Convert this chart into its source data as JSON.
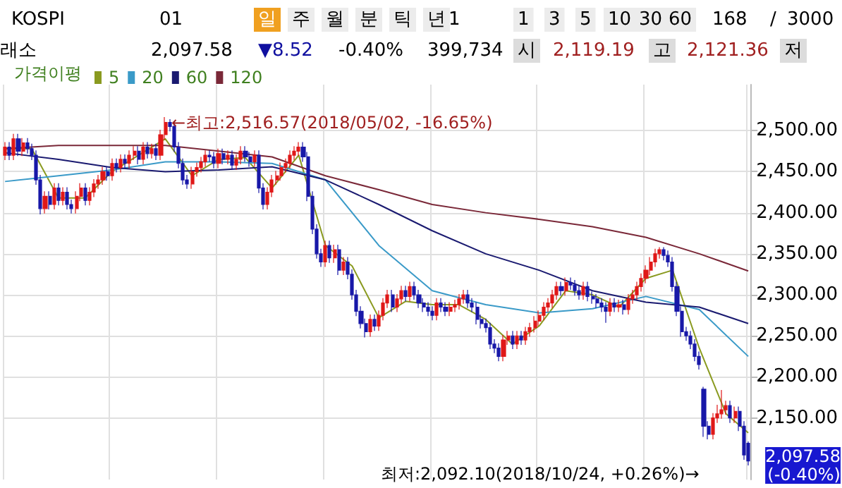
{
  "chart_data": {
    "type": "candlestick",
    "categories": [
      null,
      null,
      null,
      null,
      null,
      null,
      null,
      null,
      null,
      null,
      null,
      null,
      null,
      null,
      null,
      null,
      null,
      null,
      null,
      null,
      null,
      null,
      null,
      null,
      null,
      null,
      null,
      null,
      null,
      null,
      null,
      null,
      null,
      null,
      null,
      null,
      null,
      null,
      null,
      null,
      null,
      null,
      null,
      null,
      null,
      null,
      null,
      null,
      null,
      null,
      null,
      null,
      null,
      null,
      null,
      null,
      null,
      null,
      null,
      null,
      null,
      null,
      null,
      null,
      null,
      null,
      null,
      null,
      null,
      null,
      null,
      null,
      null,
      null,
      null,
      null,
      null,
      null,
      null,
      null,
      null,
      null,
      null,
      null,
      null,
      null,
      null,
      null,
      null,
      null,
      null,
      null,
      null,
      null,
      null,
      null,
      null,
      null,
      null,
      null,
      null,
      null,
      null,
      null,
      null,
      null,
      null,
      null,
      null,
      null,
      null,
      null,
      null,
      null,
      null,
      null,
      null,
      null,
      null,
      null,
      null,
      null,
      null,
      null,
      null,
      null,
      null,
      null,
      null,
      null,
      null,
      null,
      null,
      null,
      null,
      null,
      null,
      null,
      null,
      null,
      null,
      null,
      null,
      null,
      null,
      null,
      null,
      null,
      null,
      null,
      null,
      null,
      null,
      null,
      null,
      null,
      null,
      null,
      null,
      null,
      null,
      null,
      null,
      null,
      null,
      null,
      null,
      null
    ],
    "ohlc": [
      [
        2470,
        2486,
        2464,
        2480
      ],
      [
        2480,
        2486,
        2464,
        2470
      ],
      [
        2470,
        2496,
        2464,
        2490
      ],
      [
        2490,
        2496,
        2469,
        2475
      ],
      [
        2475,
        2491,
        2469,
        2485
      ],
      [
        2485,
        2491,
        2472,
        2478
      ],
      [
        2478,
        2484,
        2464,
        2470
      ],
      [
        2470,
        2476,
        2434,
        2440
      ],
      [
        2440,
        2446,
        2398,
        2405
      ],
      [
        2405,
        2426,
        2399,
        2420
      ],
      [
        2420,
        2426,
        2404,
        2410
      ],
      [
        2410,
        2436,
        2404,
        2430
      ],
      [
        2430,
        2436,
        2409,
        2415
      ],
      [
        2415,
        2431,
        2409,
        2425
      ],
      [
        2425,
        2431,
        2404,
        2410
      ],
      [
        2410,
        2416,
        2399,
        2405
      ],
      [
        2405,
        2426,
        2399,
        2420
      ],
      [
        2420,
        2436,
        2414,
        2430
      ],
      [
        2430,
        2436,
        2409,
        2415
      ],
      [
        2415,
        2431,
        2409,
        2425
      ],
      [
        2425,
        2441,
        2419,
        2435
      ],
      [
        2435,
        2446,
        2429,
        2440
      ],
      [
        2440,
        2456,
        2434,
        2450
      ],
      [
        2450,
        2456,
        2439,
        2445
      ],
      [
        2445,
        2466,
        2439,
        2460
      ],
      [
        2460,
        2466,
        2449,
        2455
      ],
      [
        2455,
        2471,
        2449,
        2465
      ],
      [
        2465,
        2471,
        2454,
        2460
      ],
      [
        2460,
        2476,
        2454,
        2470
      ],
      [
        2470,
        2481,
        2464,
        2475
      ],
      [
        2475,
        2481,
        2459,
        2465
      ],
      [
        2465,
        2486,
        2459,
        2480
      ],
      [
        2480,
        2486,
        2466,
        2472
      ],
      [
        2472,
        2484,
        2466,
        2478
      ],
      [
        2478,
        2484,
        2464,
        2470
      ],
      [
        2470,
        2501,
        2464,
        2495
      ],
      [
        2495,
        2516.57,
        2489,
        2510
      ],
      [
        2510,
        2514,
        2499,
        2505
      ],
      [
        2505,
        2511,
        2474,
        2480
      ],
      [
        2480,
        2486,
        2454,
        2460
      ],
      [
        2460,
        2466,
        2434,
        2440
      ],
      [
        2440,
        2446,
        2429,
        2435
      ],
      [
        2435,
        2456,
        2429,
        2450
      ],
      [
        2450,
        2461,
        2444,
        2455
      ],
      [
        2455,
        2468,
        2449,
        2462
      ],
      [
        2462,
        2476,
        2456,
        2470
      ],
      [
        2470,
        2476,
        2462,
        2468
      ],
      [
        2468,
        2474,
        2454,
        2460
      ],
      [
        2460,
        2478,
        2454,
        2472
      ],
      [
        2472,
        2478,
        2459,
        2465
      ],
      [
        2465,
        2476,
        2459,
        2470
      ],
      [
        2470,
        2476,
        2452,
        2458
      ],
      [
        2458,
        2471,
        2452,
        2465
      ],
      [
        2465,
        2481,
        2459,
        2475
      ],
      [
        2475,
        2481,
        2462,
        2468
      ],
      [
        2468,
        2474,
        2456,
        2462
      ],
      [
        2462,
        2476,
        2456,
        2470
      ],
      [
        2470,
        2476,
        2424,
        2430
      ],
      [
        2430,
        2436,
        2404,
        2410
      ],
      [
        2410,
        2431,
        2404,
        2425
      ],
      [
        2425,
        2446,
        2419,
        2440
      ],
      [
        2440,
        2451,
        2434,
        2445
      ],
      [
        2445,
        2461,
        2439,
        2455
      ],
      [
        2455,
        2466,
        2449,
        2460
      ],
      [
        2460,
        2476,
        2454,
        2470
      ],
      [
        2470,
        2481,
        2464,
        2475
      ],
      [
        2475,
        2486,
        2469,
        2480
      ],
      [
        2480,
        2486,
        2462,
        2468
      ],
      [
        2468,
        2474,
        2414,
        2420
      ],
      [
        2420,
        2426,
        2374,
        2380
      ],
      [
        2380,
        2386,
        2344,
        2350
      ],
      [
        2350,
        2356,
        2334,
        2340
      ],
      [
        2340,
        2366,
        2334,
        2360
      ],
      [
        2360,
        2366,
        2339,
        2345
      ],
      [
        2345,
        2361,
        2339,
        2355
      ],
      [
        2355,
        2361,
        2324,
        2330
      ],
      [
        2330,
        2346,
        2324,
        2340
      ],
      [
        2340,
        2346,
        2319,
        2325
      ],
      [
        2325,
        2331,
        2294,
        2300
      ],
      [
        2300,
        2306,
        2274,
        2280
      ],
      [
        2280,
        2286,
        2259,
        2265
      ],
      [
        2265,
        2271,
        2248,
        2255
      ],
      [
        2255,
        2276,
        2249,
        2270
      ],
      [
        2270,
        2276,
        2256,
        2262
      ],
      [
        2262,
        2281,
        2256,
        2275
      ],
      [
        2275,
        2296,
        2269,
        2290
      ],
      [
        2290,
        2306,
        2284,
        2300
      ],
      [
        2300,
        2306,
        2279,
        2285
      ],
      [
        2285,
        2301,
        2279,
        2295
      ],
      [
        2295,
        2311,
        2289,
        2305
      ],
      [
        2305,
        2311,
        2292,
        2298
      ],
      [
        2298,
        2316,
        2292,
        2310
      ],
      [
        2310,
        2316,
        2294,
        2300
      ],
      [
        2300,
        2306,
        2284,
        2290
      ],
      [
        2290,
        2296,
        2279,
        2285
      ],
      [
        2285,
        2291,
        2274,
        2280
      ],
      [
        2280,
        2286,
        2269,
        2275
      ],
      [
        2275,
        2296,
        2269,
        2290
      ],
      [
        2290,
        2296,
        2279,
        2285
      ],
      [
        2285,
        2291,
        2274,
        2280
      ],
      [
        2280,
        2291,
        2274,
        2285
      ],
      [
        2285,
        2294,
        2279,
        2288
      ],
      [
        2288,
        2301,
        2282,
        2295
      ],
      [
        2295,
        2306,
        2289,
        2300
      ],
      [
        2300,
        2306,
        2284,
        2290
      ],
      [
        2290,
        2296,
        2279,
        2285
      ],
      [
        2285,
        2291,
        2264,
        2270
      ],
      [
        2270,
        2276,
        2259,
        2265
      ],
      [
        2265,
        2271,
        2254,
        2260
      ],
      [
        2260,
        2266,
        2234,
        2240
      ],
      [
        2240,
        2246,
        2229,
        2235
      ],
      [
        2235,
        2241,
        2219,
        2225
      ],
      [
        2225,
        2251,
        2219,
        2245
      ],
      [
        2245,
        2256,
        2239,
        2250
      ],
      [
        2250,
        2256,
        2234,
        2240
      ],
      [
        2240,
        2256,
        2234,
        2250
      ],
      [
        2250,
        2256,
        2239,
        2245
      ],
      [
        2245,
        2261,
        2239,
        2255
      ],
      [
        2255,
        2266,
        2249,
        2260
      ],
      [
        2260,
        2274,
        2254,
        2268
      ],
      [
        2268,
        2281,
        2262,
        2275
      ],
      [
        2275,
        2291,
        2269,
        2285
      ],
      [
        2285,
        2296,
        2279,
        2290
      ],
      [
        2290,
        2306,
        2284,
        2300
      ],
      [
        2300,
        2316,
        2294,
        2310
      ],
      [
        2310,
        2316,
        2299,
        2305
      ],
      [
        2305,
        2321,
        2299,
        2315
      ],
      [
        2315,
        2321,
        2306,
        2312
      ],
      [
        2312,
        2318,
        2299,
        2305
      ],
      [
        2305,
        2311,
        2294,
        2300
      ],
      [
        2300,
        2316,
        2294,
        2310
      ],
      [
        2310,
        2316,
        2292,
        2298
      ],
      [
        2298,
        2304,
        2289,
        2295
      ],
      [
        2295,
        2301,
        2284,
        2290
      ],
      [
        2290,
        2296,
        2279,
        2285
      ],
      [
        2285,
        2291,
        2266,
        2280
      ],
      [
        2280,
        2296,
        2274,
        2290
      ],
      [
        2290,
        2296,
        2279,
        2285
      ],
      [
        2285,
        2294,
        2279,
        2288
      ],
      [
        2288,
        2294,
        2276,
        2282
      ],
      [
        2282,
        2301,
        2276,
        2295
      ],
      [
        2295,
        2306,
        2289,
        2300
      ],
      [
        2300,
        2316,
        2294,
        2310
      ],
      [
        2310,
        2326,
        2304,
        2320
      ],
      [
        2320,
        2336,
        2314,
        2330
      ],
      [
        2330,
        2346,
        2324,
        2340
      ],
      [
        2340,
        2356,
        2334,
        2350
      ],
      [
        2350,
        2358,
        2344,
        2355
      ],
      [
        2355,
        2358,
        2342,
        2348
      ],
      [
        2348,
        2354,
        2334,
        2340
      ],
      [
        2340,
        2346,
        2304,
        2310
      ],
      [
        2310,
        2316,
        2274,
        2280
      ],
      [
        2280,
        2286,
        2249,
        2255
      ],
      [
        2255,
        2261,
        2244,
        2250
      ],
      [
        2250,
        2256,
        2234,
        2240
      ],
      [
        2240,
        2246,
        2219,
        2225
      ],
      [
        2225,
        2231,
        2209,
        2215
      ],
      [
        2185,
        2188,
        2127,
        2140
      ],
      [
        2140,
        2146,
        2124,
        2130
      ],
      [
        2130,
        2156,
        2124,
        2150
      ],
      [
        2150,
        2166,
        2144,
        2155
      ],
      [
        2155,
        2184,
        2149,
        2160
      ],
      [
        2160,
        2171,
        2154,
        2165
      ],
      [
        2165,
        2171,
        2144,
        2150
      ],
      [
        2150,
        2164,
        2144,
        2158
      ],
      [
        2158,
        2164,
        2134,
        2140
      ],
      [
        2140,
        2146,
        2099,
        2105
      ],
      [
        2119.19,
        2121.36,
        2092.1,
        2097.58
      ]
    ],
    "colors": [
      "#e01818",
      "#1818a8",
      "#e01818",
      "#1818a8",
      "#e01818",
      "#1818a8",
      "#1818a8",
      "#1818a8",
      "#1818a8",
      "#e01818",
      "#1818a8",
      "#e01818",
      "#1818a8",
      "#e01818",
      "#1818a8",
      "#1818a8",
      "#e01818",
      "#e01818",
      "#1818a8",
      "#e01818",
      "#e01818",
      "#e01818",
      "#e01818",
      "#1818a8",
      "#e01818",
      "#1818a8",
      "#e01818",
      "#1818a8",
      "#e01818",
      "#e01818",
      "#1818a8",
      "#e01818",
      "#1818a8",
      "#e01818",
      "#1818a8",
      "#e01818",
      "#e01818",
      "#1818a8",
      "#1818a8",
      "#1818a8",
      "#1818a8",
      "#1818a8",
      "#e01818",
      "#e01818",
      "#e01818",
      "#e01818",
      "#1818a8",
      "#1818a8",
      "#e01818",
      "#1818a8",
      "#e01818",
      "#1818a8",
      "#e01818",
      "#e01818",
      "#1818a8",
      "#1818a8",
      "#e01818",
      "#1818a8",
      "#1818a8",
      "#e01818",
      "#e01818",
      "#e01818",
      "#e01818",
      "#e01818",
      "#e01818",
      "#e01818",
      "#e01818",
      "#1818a8",
      "#1818a8",
      "#1818a8",
      "#1818a8",
      "#1818a8",
      "#e01818",
      "#1818a8",
      "#e01818",
      "#1818a8",
      "#e01818",
      "#1818a8",
      "#1818a8",
      "#1818a8",
      "#1818a8",
      "#1818a8",
      "#e01818",
      "#1818a8",
      "#e01818",
      "#e01818",
      "#e01818",
      "#1818a8",
      "#e01818",
      "#e01818",
      "#1818a8",
      "#e01818",
      "#1818a8",
      "#1818a8",
      "#1818a8",
      "#1818a8",
      "#1818a8",
      "#e01818",
      "#1818a8",
      "#1818a8",
      "#e01818",
      "#e01818",
      "#e01818",
      "#e01818",
      "#1818a8",
      "#1818a8",
      "#1818a8",
      "#1818a8",
      "#1818a8",
      "#1818a8",
      "#1818a8",
      "#1818a8",
      "#e01818",
      "#e01818",
      "#1818a8",
      "#e01818",
      "#1818a8",
      "#e01818",
      "#e01818",
      "#e01818",
      "#e01818",
      "#e01818",
      "#e01818",
      "#e01818",
      "#e01818",
      "#1818a8",
      "#e01818",
      "#1818a8",
      "#1818a8",
      "#1818a8",
      "#e01818",
      "#1818a8",
      "#1818a8",
      "#1818a8",
      "#1818a8",
      "#1818a8",
      "#e01818",
      "#1818a8",
      "#e01818",
      "#1818a8",
      "#e01818",
      "#e01818",
      "#e01818",
      "#e01818",
      "#e01818",
      "#e01818",
      "#e01818",
      "#e01818",
      "#1818a8",
      "#1818a8",
      "#1818a8",
      "#1818a8",
      "#1818a8",
      "#1818a8",
      "#1818a8",
      "#1818a8",
      "#1818a8",
      "#1818a8",
      "#1818a8",
      "#e01818",
      "#e01818",
      "#e01818",
      "#e01818",
      "#1818a8",
      "#e01818",
      "#1818a8",
      "#1818a8",
      "#1818a8"
    ],
    "series": [
      {
        "type": "line",
        "name": "5",
        "color": "#8a9a20",
        "values": [
          2478,
          null,
          null,
          null,
          null,
          null,
          2478,
          null,
          null,
          null,
          null,
          null,
          2418,
          null,
          null,
          null,
          null,
          null,
          2418,
          null,
          null,
          null,
          null,
          null,
          2450,
          null,
          null,
          null,
          null,
          null,
          2470,
          null,
          null,
          null,
          null,
          null,
          2490,
          null,
          null,
          null,
          null,
          null,
          2445,
          null,
          null,
          null,
          null,
          null,
          2465,
          null,
          null,
          null,
          null,
          null,
          2467,
          null,
          null,
          null,
          null,
          null,
          2430,
          null,
          null,
          null,
          null,
          null,
          2470,
          null,
          null,
          null,
          null,
          null,
          2360,
          null,
          null,
          null,
          null,
          null,
          2335,
          null,
          null,
          null,
          null,
          null,
          2272,
          null,
          null,
          null,
          null,
          null,
          2292,
          null,
          null,
          null,
          null,
          null,
          2288,
          null,
          null,
          null,
          null,
          null,
          2288,
          null,
          null,
          null,
          null,
          null,
          2270,
          null,
          null,
          null,
          null,
          null,
          2240,
          null,
          null,
          null,
          null,
          null,
          2262,
          null,
          null,
          null,
          null,
          null,
          2305,
          null,
          null,
          null,
          null,
          null,
          2300,
          null,
          null,
          null,
          null,
          null,
          2285,
          null,
          null,
          null,
          null,
          null,
          2320,
          null,
          null,
          null,
          null,
          null,
          2330,
          null,
          null,
          null,
          null,
          null,
          2235,
          null,
          null,
          null,
          null,
          null,
          2155,
          null,
          null,
          null,
          null,
          2132
        ]
      },
      {
        "type": "line",
        "name": "20",
        "color": "#3a9ac8",
        "values": [
          2438,
          null,
          null,
          null,
          null,
          null,
          null,
          null,
          null,
          null,
          null,
          null,
          2445,
          null,
          null,
          null,
          null,
          null,
          null,
          null,
          null,
          null,
          null,
          null,
          2452,
          null,
          null,
          null,
          null,
          null,
          null,
          null,
          null,
          null,
          null,
          null,
          2462,
          null,
          null,
          null,
          null,
          null,
          null,
          null,
          null,
          null,
          null,
          null,
          2462,
          null,
          null,
          null,
          null,
          null,
          null,
          null,
          null,
          null,
          null,
          null,
          2460,
          null,
          null,
          null,
          null,
          null,
          null,
          null,
          null,
          null,
          null,
          null,
          2440,
          null,
          null,
          null,
          null,
          null,
          null,
          null,
          null,
          null,
          null,
          null,
          2360,
          null,
          null,
          null,
          null,
          null,
          null,
          null,
          null,
          null,
          null,
          null,
          2305,
          null,
          null,
          null,
          null,
          null,
          null,
          null,
          null,
          null,
          null,
          null,
          2288,
          null,
          null,
          null,
          null,
          null,
          null,
          null,
          null,
          null,
          null,
          null,
          2278,
          null,
          null,
          null,
          null,
          null,
          null,
          null,
          null,
          null,
          null,
          null,
          2283,
          null,
          null,
          null,
          null,
          null,
          null,
          null,
          null,
          null,
          null,
          null,
          2298,
          null,
          null,
          null,
          null,
          null,
          null,
          null,
          null,
          null,
          null,
          null,
          2282,
          null,
          null,
          null,
          null,
          null,
          null,
          null,
          null,
          null,
          null,
          2225
        ]
      },
      {
        "type": "line",
        "name": "60",
        "color": "#1a1a70",
        "values": [
          2473,
          null,
          null,
          null,
          null,
          null,
          null,
          null,
          null,
          null,
          null,
          null,
          2465,
          null,
          null,
          null,
          null,
          null,
          null,
          null,
          null,
          null,
          null,
          null,
          2455,
          null,
          null,
          null,
          null,
          null,
          null,
          null,
          null,
          null,
          null,
          null,
          2450,
          null,
          null,
          null,
          null,
          null,
          null,
          null,
          null,
          null,
          null,
          null,
          2452,
          null,
          null,
          null,
          null,
          null,
          null,
          null,
          null,
          null,
          null,
          null,
          2456,
          null,
          null,
          null,
          null,
          null,
          null,
          null,
          null,
          null,
          null,
          null,
          2440,
          null,
          null,
          null,
          null,
          null,
          null,
          null,
          null,
          null,
          null,
          null,
          2410,
          null,
          null,
          null,
          null,
          null,
          null,
          null,
          null,
          null,
          null,
          null,
          2378,
          null,
          null,
          null,
          null,
          null,
          null,
          null,
          null,
          null,
          null,
          null,
          2350,
          null,
          null,
          null,
          null,
          null,
          null,
          null,
          null,
          null,
          null,
          null,
          2330,
          null,
          null,
          null,
          null,
          null,
          null,
          null,
          null,
          null,
          null,
          null,
          2305,
          null,
          null,
          null,
          null,
          null,
          null,
          null,
          null,
          null,
          null,
          null,
          2291,
          null,
          null,
          null,
          null,
          null,
          null,
          null,
          null,
          null,
          null,
          null,
          2285,
          null,
          null,
          null,
          null,
          null,
          null,
          null,
          null,
          null,
          null,
          2265
        ]
      },
      {
        "type": "line",
        "name": "120",
        "color": "#7a2838",
        "values": [
          2478,
          null,
          null,
          null,
          null,
          null,
          null,
          null,
          null,
          null,
          null,
          null,
          2482,
          null,
          null,
          null,
          null,
          null,
          null,
          null,
          null,
          null,
          null,
          null,
          2482,
          null,
          null,
          null,
          null,
          null,
          null,
          null,
          null,
          null,
          null,
          null,
          2482,
          null,
          null,
          null,
          null,
          null,
          null,
          null,
          null,
          null,
          null,
          null,
          2475,
          null,
          null,
          null,
          null,
          null,
          null,
          null,
          null,
          null,
          null,
          null,
          2468,
          null,
          null,
          null,
          null,
          null,
          null,
          null,
          null,
          null,
          null,
          null,
          2445,
          null,
          null,
          null,
          null,
          null,
          null,
          null,
          null,
          null,
          null,
          null,
          2428,
          null,
          null,
          null,
          null,
          null,
          null,
          null,
          null,
          null,
          null,
          null,
          2410,
          null,
          null,
          null,
          null,
          null,
          null,
          null,
          null,
          null,
          null,
          null,
          2400,
          null,
          null,
          null,
          null,
          null,
          null,
          null,
          null,
          null,
          null,
          null,
          2392,
          null,
          null,
          null,
          null,
          null,
          null,
          null,
          null,
          null,
          null,
          null,
          2383,
          null,
          null,
          null,
          null,
          null,
          null,
          null,
          null,
          null,
          null,
          null,
          2370,
          null,
          null,
          null,
          null,
          null,
          null,
          null,
          null,
          null,
          null,
          null,
          2350,
          null,
          null,
          null,
          null,
          null,
          null,
          null,
          null,
          null,
          null,
          2329
        ]
      }
    ],
    "legend_title": "가격이평",
    "legend": "top left",
    "ylim": [
      2075,
      2556
    ],
    "yticks": [
      {
        "value": 2150,
        "label": "2,150.00"
      },
      {
        "value": 2200,
        "label": "2,200.00"
      },
      {
        "value": 2250,
        "label": "2,250.00"
      },
      {
        "value": 2300,
        "label": "2,300.00"
      },
      {
        "value": 2350,
        "label": "2,350.00"
      },
      {
        "value": 2400,
        "label": "2,400.00"
      },
      {
        "value": 2450,
        "label": "2,450.00"
      },
      {
        "value": 2500,
        "label": "2,500.00"
      }
    ],
    "grid": true,
    "tick_labels": "y",
    "annotations": [
      "KOSPI",
      "01",
      "일",
      "주",
      "월",
      "분",
      "틱",
      "년",
      "1",
      "1",
      "3",
      "5",
      "10",
      "30",
      "60",
      "168",
      "/",
      "3000",
      "래소",
      "2,097.58",
      "▼8.52",
      "-0.40%",
      "399,734",
      "시",
      "2,119.19",
      "고",
      "2,121.36",
      "저",
      "←최고:2,516.57(2018/05/02, -16.65%)",
      "최저:2,092.10(2018/10/24, +0.26%)→",
      "2,097.58\n(-0.40%)"
    ]
  }
}
